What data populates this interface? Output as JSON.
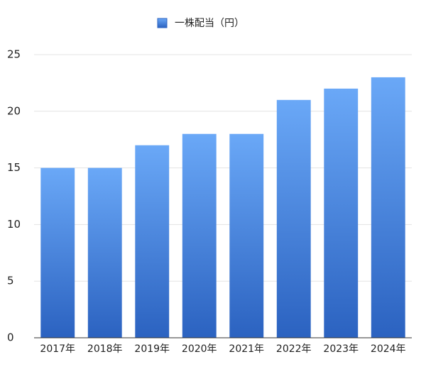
{
  "chart_data": {
    "type": "bar",
    "categories": [
      "2017年",
      "2018年",
      "2019年",
      "2020年",
      "2021年",
      "2022年",
      "2023年",
      "2024年"
    ],
    "series": [
      {
        "name": "一株配当（円）",
        "color": "#2b62c0",
        "values": [
          15,
          15,
          17,
          18,
          18,
          21,
          22,
          23
        ]
      }
    ],
    "ylim": [
      0,
      25
    ],
    "yticks": [
      0,
      5,
      10,
      15,
      20,
      25
    ],
    "grid": true,
    "legend": "top"
  }
}
